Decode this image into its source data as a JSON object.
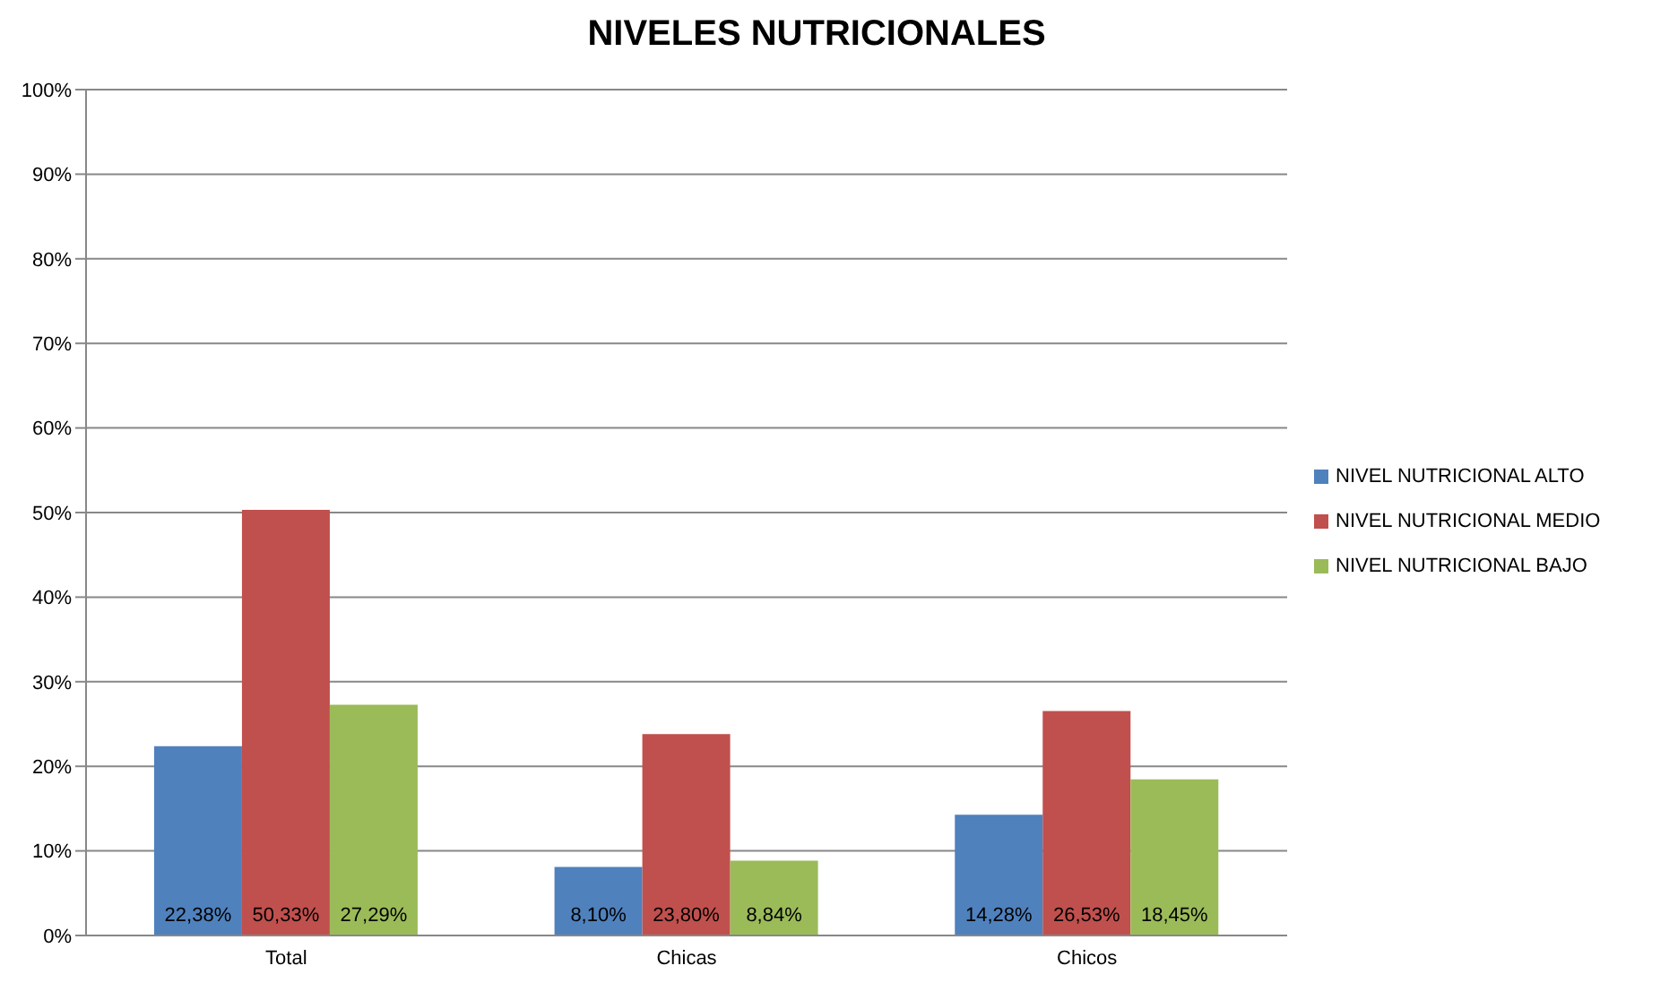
{
  "chart_data": {
    "type": "bar",
    "title": "NIVELES NUTRICIONALES",
    "categories": [
      "Total",
      "Chicas",
      "Chicos"
    ],
    "series": [
      {
        "name": "NIVEL NUTRICIONAL ALTO",
        "color": "#4f81bd",
        "values": [
          22.38,
          8.1,
          14.28
        ],
        "value_labels": [
          "22,38%",
          "8,10%",
          "14,28%"
        ]
      },
      {
        "name": "NIVEL NUTRICIONAL MEDIO",
        "color": "#c0504d",
        "values": [
          50.33,
          23.8,
          26.53
        ],
        "value_labels": [
          "50,33%",
          "23,80%",
          "26,53%"
        ]
      },
      {
        "name": "NIVEL NUTRICIONAL BAJO",
        "color": "#9bbb59",
        "values": [
          27.29,
          8.84,
          18.45
        ],
        "value_labels": [
          "27,29%",
          "8,84%",
          "18,45%"
        ]
      }
    ],
    "ylim": [
      0,
      100
    ],
    "yticks": [
      {
        "value": 0,
        "label": "0%"
      },
      {
        "value": 10,
        "label": "10%"
      },
      {
        "value": 20,
        "label": "20%"
      },
      {
        "value": 30,
        "label": "30%"
      },
      {
        "value": 40,
        "label": "40%"
      },
      {
        "value": 50,
        "label": "50%"
      },
      {
        "value": 60,
        "label": "60%"
      },
      {
        "value": 70,
        "label": "70%"
      },
      {
        "value": 80,
        "label": "80%"
      },
      {
        "value": 90,
        "label": "90%"
      },
      {
        "value": 100,
        "label": "100%"
      }
    ],
    "grid": "y",
    "legend": "right"
  }
}
